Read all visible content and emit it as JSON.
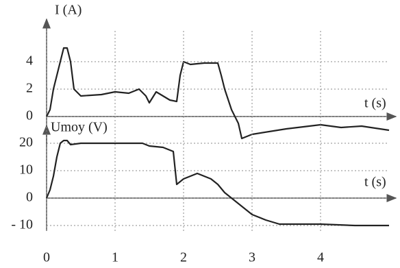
{
  "chart_data": [
    {
      "type": "line",
      "y_label": "I (A)",
      "x_label": "t (s)",
      "color": "#222222",
      "grid": true,
      "xlim": [
        0,
        5
      ],
      "ylim": [
        -2,
        6
      ],
      "yticks": [
        0,
        2,
        4
      ],
      "x": [
        0,
        0.05,
        0.1,
        0.15,
        0.2,
        0.25,
        0.3,
        0.35,
        0.4,
        0.5,
        0.8,
        1.0,
        1.2,
        1.35,
        1.45,
        1.5,
        1.6,
        1.8,
        1.9,
        1.95,
        2.0,
        2.1,
        2.3,
        2.5,
        2.55,
        2.6,
        2.7,
        2.8,
        2.85,
        3.0,
        3.5,
        4.0,
        4.3,
        4.6,
        5.0
      ],
      "values": [
        0,
        0.5,
        2,
        3,
        4,
        5,
        5,
        4,
        2,
        1.5,
        1.6,
        1.8,
        1.7,
        2,
        1.5,
        1,
        1.8,
        1.2,
        1.1,
        3,
        4,
        3.8,
        3.9,
        3.9,
        3,
        2,
        0.5,
        -0.5,
        -1.6,
        -1.3,
        -0.9,
        -0.6,
        -0.8,
        -0.7,
        -1.0
      ]
    },
    {
      "type": "line",
      "y_label": "Umoy (V)",
      "x_label": "t (s)",
      "color": "#222222",
      "grid": true,
      "xlim": [
        0,
        5
      ],
      "ylim": [
        -12,
        25
      ],
      "yticks": [
        {
          "value": -10,
          "label": "- 10"
        },
        0,
        10,
        20
      ],
      "xticks": [
        0,
        1,
        2,
        3,
        4
      ],
      "x": [
        0,
        0.05,
        0.1,
        0.15,
        0.2,
        0.25,
        0.3,
        0.35,
        0.5,
        1.0,
        1.4,
        1.5,
        1.7,
        1.85,
        1.9,
        2.0,
        2.1,
        2.2,
        2.4,
        2.5,
        2.6,
        2.8,
        3.0,
        3.2,
        3.4,
        4.0,
        4.5,
        5.0
      ],
      "values": [
        0,
        3,
        8,
        15,
        20,
        21,
        21,
        19.5,
        20,
        20,
        20,
        19,
        18.5,
        17,
        5,
        7,
        8,
        9,
        7,
        5,
        2,
        -2,
        -6,
        -8,
        -9.5,
        -9.5,
        -10,
        -10
      ]
    }
  ]
}
